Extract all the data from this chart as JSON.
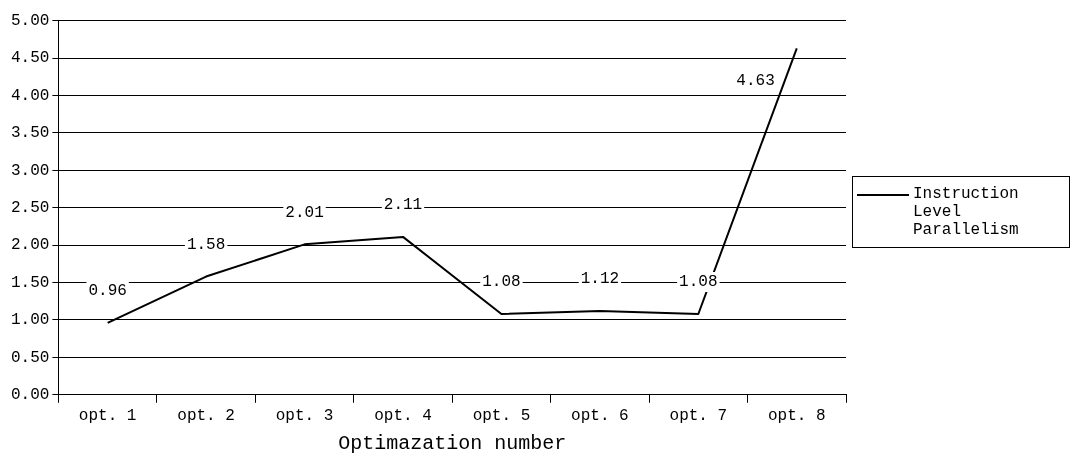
{
  "chart_data": {
    "type": "line",
    "xlabel": "Optimazation number",
    "categories": [
      "opt. 1",
      "opt. 2",
      "opt. 3",
      "opt. 4",
      "opt. 5",
      "opt. 6",
      "opt. 7",
      "opt. 8"
    ],
    "series": [
      {
        "name": "Instruction Level Parallelism",
        "color": "#000000",
        "values": [
          0.96,
          1.58,
          2.01,
          2.11,
          1.08,
          1.12,
          1.08,
          4.63
        ]
      }
    ],
    "ylim": [
      0,
      5
    ],
    "yticks": [
      {
        "value": 0,
        "label": "0.00"
      },
      {
        "value": 0.5,
        "label": "0.50"
      },
      {
        "value": 1,
        "label": "1.00"
      },
      {
        "value": 1.5,
        "label": "1.50"
      },
      {
        "value": 2,
        "label": "2.00"
      },
      {
        "value": 2.5,
        "label": "2.50"
      },
      {
        "value": 3,
        "label": "3.00"
      },
      {
        "value": 3.5,
        "label": "3.50"
      },
      {
        "value": 4,
        "label": "4.00"
      },
      {
        "value": 4.5,
        "label": "4.50"
      },
      {
        "value": 5,
        "label": "5.00"
      }
    ],
    "grid": "y",
    "legend": "right",
    "data_labels": true,
    "marker": "none",
    "line_style": "solid"
  }
}
